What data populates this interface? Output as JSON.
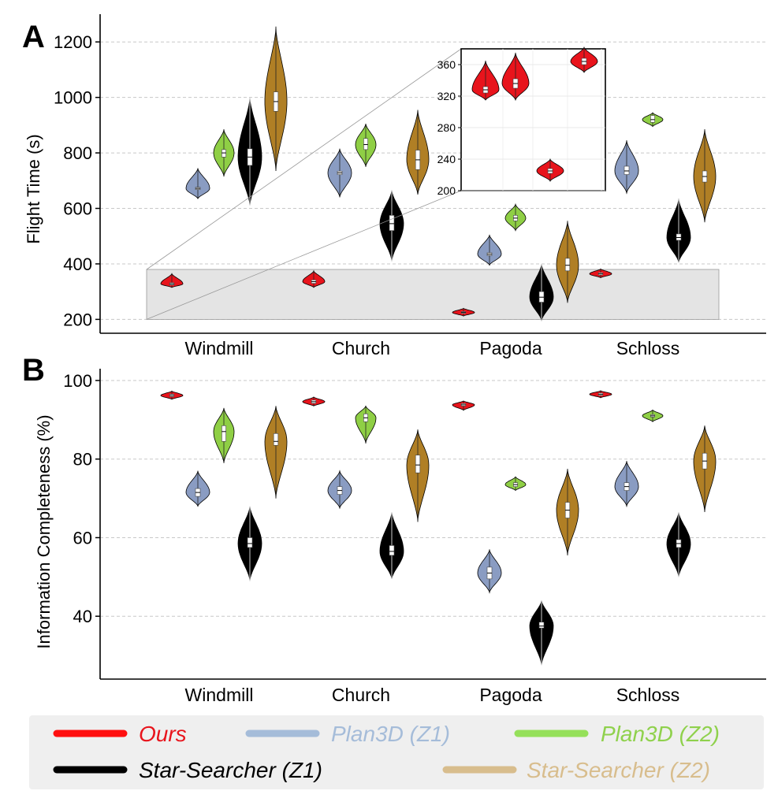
{
  "colors": {
    "Ours": "#e8141c",
    "Plan3D (Z1)": "#8a9cc2",
    "Plan3D (Z2)": "#8fcf45",
    "Star-Searcher (Z1)": "#000000",
    "Star-Searcher (Z2)": "#b07f25"
  },
  "legend": {
    "items": [
      {
        "label": "Ours",
        "line_color": "#ff1010",
        "text_color": "#e8141c"
      },
      {
        "label": "Plan3D (Z1)",
        "line_color": "#a5bcd9",
        "text_color": "#a5bcd9"
      },
      {
        "label": "Plan3D (Z2)",
        "line_color": "#95e05a",
        "text_color": "#8fd14c"
      },
      {
        "label": "Star-Searcher (Z1)",
        "line_color": "#000000",
        "text_color": "#000000"
      },
      {
        "label": "Star-Searcher (Z2)",
        "line_color": "#d8bd8d",
        "text_color": "#d8bd8d"
      }
    ]
  },
  "chart_data": [
    {
      "panel": "A",
      "type": "violin",
      "title": "",
      "xlabel": "",
      "ylabel": "Flight Time (s)",
      "ylim": [
        150,
        1300
      ],
      "yticks": [
        200,
        400,
        600,
        800,
        1000,
        1200
      ],
      "grid": "horizontal dashed",
      "categories": [
        "Windmill",
        "Church",
        "Pagoda",
        "Schloss"
      ],
      "series": [
        {
          "name": "Ours",
          "values": [
            {
              "median": 328,
              "min": 315,
              "max": 365,
              "q1": 324,
              "q3": 332
            },
            {
              "median": 336,
              "min": 315,
              "max": 375,
              "q1": 330,
              "q3": 342
            },
            {
              "median": 225,
              "min": 212,
              "max": 240,
              "q1": 222,
              "q3": 228
            },
            {
              "median": 364,
              "min": 350,
              "max": 382,
              "q1": 360,
              "q3": 368
            }
          ]
        },
        {
          "name": "Plan3D (Z1)",
          "values": [
            {
              "median": 672,
              "min": 635,
              "max": 745,
              "q1": 668,
              "q3": 676
            },
            {
              "median": 728,
              "min": 640,
              "max": 815,
              "q1": 722,
              "q3": 734
            },
            {
              "median": 435,
              "min": 395,
              "max": 505,
              "q1": 430,
              "q3": 440
            },
            {
              "median": 735,
              "min": 655,
              "max": 845,
              "q1": 722,
              "q3": 752
            }
          ]
        },
        {
          "name": "Plan3D (Z2)",
          "values": [
            {
              "median": 800,
              "min": 715,
              "max": 885,
              "q1": 785,
              "q3": 812
            },
            {
              "median": 830,
              "min": 750,
              "max": 905,
              "q1": 812,
              "q3": 852
            },
            {
              "median": 565,
              "min": 520,
              "max": 615,
              "q1": 555,
              "q3": 575
            },
            {
              "median": 920,
              "min": 895,
              "max": 945,
              "q1": 910,
              "q3": 935
            }
          ]
        },
        {
          "name": "Star-Searcher (Z1)",
          "values": [
            {
              "median": 785,
              "min": 610,
              "max": 1000,
              "q1": 755,
              "q3": 815
            },
            {
              "median": 545,
              "min": 410,
              "max": 665,
              "q1": 520,
              "q3": 575
            },
            {
              "median": 280,
              "min": 195,
              "max": 400,
              "q1": 262,
              "q3": 300
            },
            {
              "median": 495,
              "min": 405,
              "max": 635,
              "q1": 485,
              "q3": 508
            }
          ]
        },
        {
          "name": "Star-Searcher (Z2)",
          "values": [
            {
              "median": 985,
              "min": 735,
              "max": 1255,
              "q1": 950,
              "q3": 1020
            },
            {
              "median": 775,
              "min": 650,
              "max": 955,
              "q1": 740,
              "q3": 810
            },
            {
              "median": 395,
              "min": 260,
              "max": 555,
              "q1": 375,
              "q3": 420
            },
            {
              "median": 715,
              "min": 550,
              "max": 885,
              "q1": 695,
              "q3": 735
            }
          ]
        }
      ],
      "inset": {
        "ylim": [
          200,
          380
        ],
        "yticks": [
          200,
          240,
          280,
          320,
          360
        ],
        "series": "Ours",
        "values": [
          {
            "median": 328,
            "min": 315,
            "max": 365,
            "q1": 324,
            "q3": 332
          },
          {
            "median": 336,
            "min": 315,
            "max": 375,
            "q1": 330,
            "q3": 342
          },
          {
            "median": 225,
            "min": 212,
            "max": 240,
            "q1": 222,
            "q3": 228
          },
          {
            "median": 364,
            "min": 350,
            "max": 382,
            "q1": 360,
            "q3": 368
          }
        ]
      }
    },
    {
      "panel": "B",
      "type": "violin",
      "title": "",
      "xlabel": "",
      "ylabel": "Information Completeness (%)",
      "ylim": [
        24,
        103
      ],
      "yticks": [
        40,
        60,
        80,
        100
      ],
      "grid": "horizontal dashed",
      "categories": [
        "Windmill",
        "Church",
        "Pagoda",
        "Schloss"
      ],
      "series": [
        {
          "name": "Ours",
          "values": [
            {
              "median": 96.2,
              "min": 95.2,
              "max": 97.3,
              "q1": 95.9,
              "q3": 96.5
            },
            {
              "median": 94.6,
              "min": 93.5,
              "max": 95.8,
              "q1": 94.2,
              "q3": 95.0
            },
            {
              "median": 93.8,
              "min": 92.4,
              "max": 94.8,
              "q1": 93.5,
              "q3": 94.1
            },
            {
              "median": 96.5,
              "min": 95.6,
              "max": 97.4,
              "q1": 96.2,
              "q3": 96.8
            }
          ]
        },
        {
          "name": "Plan3D (Z1)",
          "values": [
            {
              "median": 71.5,
              "min": 68,
              "max": 77,
              "q1": 70.5,
              "q3": 72.5
            },
            {
              "median": 72.0,
              "min": 67.5,
              "max": 77,
              "q1": 71.0,
              "q3": 73.0
            },
            {
              "median": 51.0,
              "min": 46,
              "max": 57,
              "q1": 49.5,
              "q3": 52.5
            },
            {
              "median": 73.0,
              "min": 68,
              "max": 79.5,
              "q1": 72.0,
              "q3": 74.0
            }
          ]
        },
        {
          "name": "Plan3D (Z2)",
          "values": [
            {
              "median": 87.0,
              "min": 79,
              "max": 93,
              "q1": 84.5,
              "q3": 88.5
            },
            {
              "median": 90.5,
              "min": 84,
              "max": 93.5,
              "q1": 89.5,
              "q3": 91.5
            },
            {
              "median": 73.5,
              "min": 72,
              "max": 75.5,
              "q1": 73.0,
              "q3": 74.0
            },
            {
              "median": 91.0,
              "min": 89.5,
              "max": 92.5,
              "q1": 90.7,
              "q3": 91.3
            }
          ]
        },
        {
          "name": "Star-Searcher (Z1)",
          "values": [
            {
              "median": 58.5,
              "min": 49,
              "max": 68,
              "q1": 57.5,
              "q3": 60
            },
            {
              "median": 56.5,
              "min": 49.5,
              "max": 66.5,
              "q1": 55.5,
              "q3": 58
            },
            {
              "median": 37.5,
              "min": 27.5,
              "max": 44,
              "q1": 37,
              "q3": 38.5
            },
            {
              "median": 58.5,
              "min": 50,
              "max": 66.5,
              "q1": 57.5,
              "q3": 59.5
            }
          ]
        },
        {
          "name": "Star-Searcher (Z2)",
          "values": [
            {
              "median": 84.5,
              "min": 70,
              "max": 93.5,
              "q1": 83.5,
              "q3": 86.5
            },
            {
              "median": 78.5,
              "min": 64,
              "max": 87.5,
              "q1": 76.5,
              "q3": 81
            },
            {
              "median": 67.0,
              "min": 55.5,
              "max": 77.5,
              "q1": 65,
              "q3": 69
            },
            {
              "median": 79.5,
              "min": 66.5,
              "max": 88.5,
              "q1": 77.5,
              "q3": 81.5
            }
          ]
        }
      ]
    }
  ],
  "panel_labels": [
    "A",
    "B"
  ]
}
